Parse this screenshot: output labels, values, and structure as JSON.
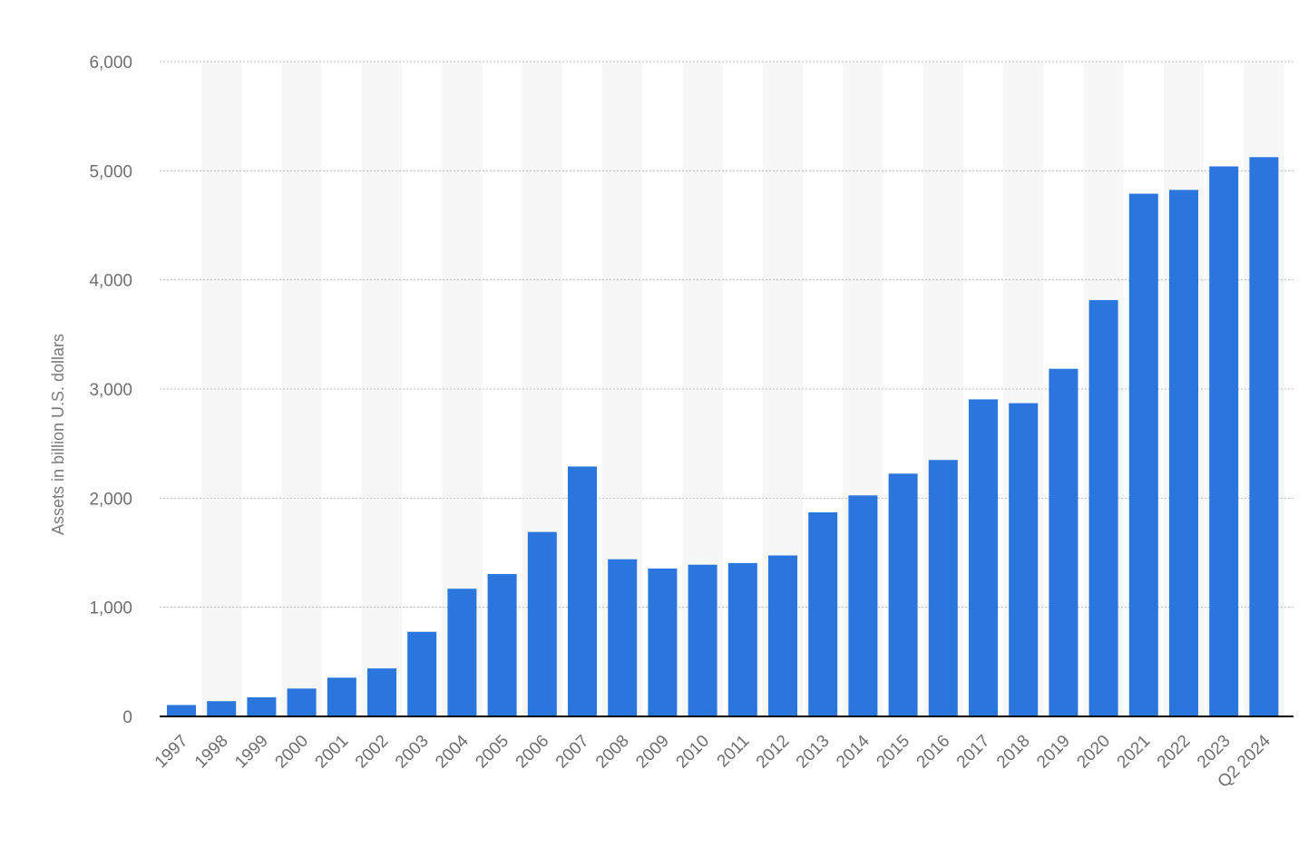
{
  "chart_data": {
    "type": "bar",
    "title": "",
    "xlabel": "",
    "ylabel": "Assets in billion U.S. dollars",
    "categories": [
      "1997",
      "1998",
      "1999",
      "2000",
      "2001",
      "2002",
      "2003",
      "2004",
      "2005",
      "2006",
      "2007",
      "2008",
      "2009",
      "2010",
      "2011",
      "2012",
      "2013",
      "2014",
      "2015",
      "2016",
      "2017",
      "2018",
      "2019",
      "2020",
      "2021",
      "2022",
      "2023",
      "Q2 2024"
    ],
    "values": [
      105,
      140,
      175,
      255,
      355,
      440,
      775,
      1170,
      1305,
      1690,
      2290,
      1440,
      1355,
      1390,
      1405,
      1475,
      1870,
      2025,
      2225,
      2350,
      2905,
      2870,
      3185,
      3815,
      4790,
      4825,
      5040,
      5125
    ],
    "ylim": [
      0,
      6000
    ],
    "yticks": [
      0,
      1000,
      2000,
      3000,
      4000,
      5000,
      6000
    ],
    "ytick_labels": [
      "0",
      "1,000",
      "2,000",
      "3,000",
      "4,000",
      "5,000",
      "6,000"
    ],
    "grid": true,
    "bar_color": "#2a76dd",
    "alternating_band_color": "#f7f7f7"
  }
}
